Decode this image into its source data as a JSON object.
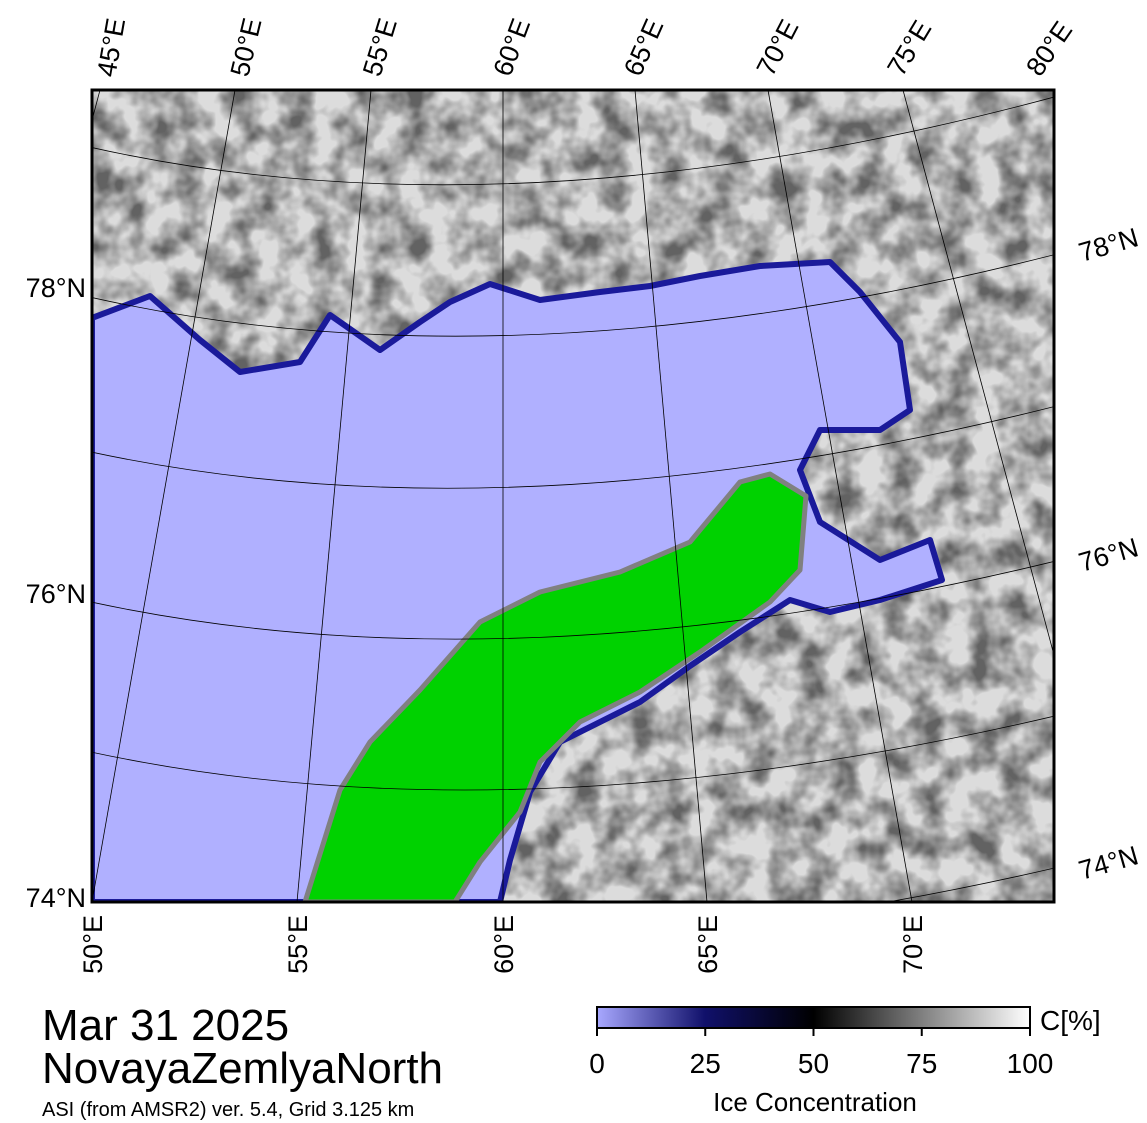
{
  "map": {
    "top_lon_labels": [
      "45°E",
      "50°E",
      "55°E",
      "60°E",
      "65°E",
      "70°E",
      "75°E",
      "80°E"
    ],
    "bottom_lon_labels": [
      "50°E",
      "55°E",
      "60°E",
      "65°E",
      "70°E"
    ],
    "left_lat_labels": [
      "78°N",
      "76°N",
      "74°N"
    ],
    "right_lat_labels": [
      "78°N",
      "76°N",
      "74°N"
    ]
  },
  "date": "Mar 31 2025",
  "region": "NovayaZemlyaNorth",
  "source": "ASI (from AMSR2) ver. 5.4,  Grid 3.125 km",
  "colorbar": {
    "label": "Ice Concentration",
    "unit": "C[%]",
    "lim": [
      0,
      100
    ],
    "ticks": [
      0,
      25,
      50,
      75,
      100
    ]
  }
}
